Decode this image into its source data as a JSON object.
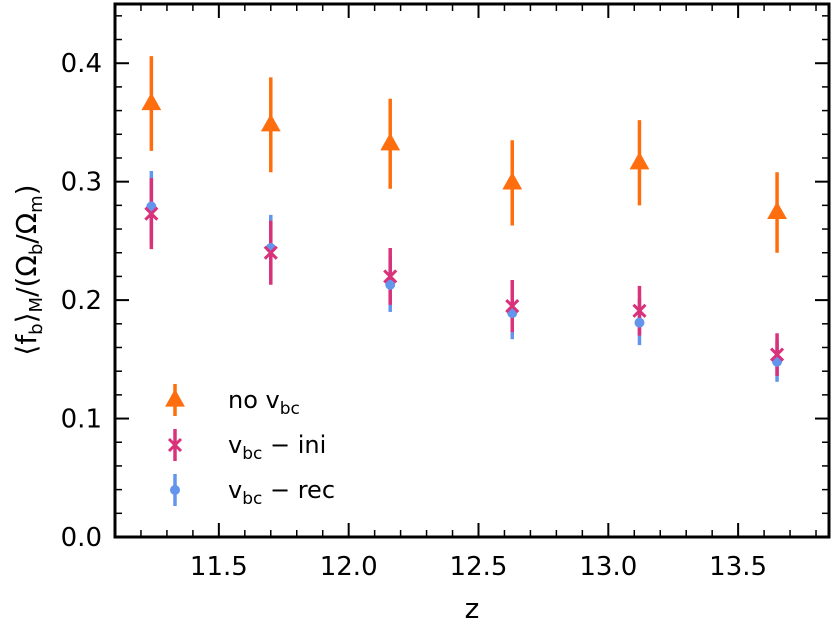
{
  "chart_data": {
    "type": "scatter",
    "xlabel": "z",
    "ylabel": "⟨fb⟩M/(Ωb/Ωm)",
    "xlim": [
      11.1,
      13.85
    ],
    "ylim": [
      0.0,
      0.45
    ],
    "xticks": [
      11.5,
      12.0,
      12.5,
      13.0,
      13.5
    ],
    "xtick_labels": [
      "11.5",
      "12.0",
      "12.5",
      "13.0",
      "13.5"
    ],
    "yticks": [
      0.0,
      0.1,
      0.2,
      0.3,
      0.4
    ],
    "ytick_labels": [
      "0.0",
      "0.1",
      "0.2",
      "0.3",
      "0.4"
    ],
    "legend_position": "bottom-left",
    "series": [
      {
        "name": "no vbc",
        "label_main": "no v",
        "label_sub": "bc",
        "label_suffix": "",
        "marker": "triangle",
        "color": "#ff6e0e",
        "points": [
          {
            "x": 11.24,
            "y": 0.366,
            "lo": 0.326,
            "hi": 0.406
          },
          {
            "x": 11.7,
            "y": 0.348,
            "lo": 0.308,
            "hi": 0.388
          },
          {
            "x": 12.16,
            "y": 0.332,
            "lo": 0.294,
            "hi": 0.37
          },
          {
            "x": 12.63,
            "y": 0.299,
            "lo": 0.263,
            "hi": 0.335
          },
          {
            "x": 13.12,
            "y": 0.316,
            "lo": 0.28,
            "hi": 0.352
          },
          {
            "x": 13.65,
            "y": 0.274,
            "lo": 0.24,
            "hi": 0.308
          }
        ]
      },
      {
        "name": "vbc - ini",
        "label_main": "v",
        "label_sub": "bc",
        "label_suffix": " − ini",
        "marker": "x",
        "color": "#d9327a",
        "points": [
          {
            "x": 11.24,
            "y": 0.273,
            "lo": 0.243,
            "hi": 0.303
          },
          {
            "x": 11.7,
            "y": 0.24,
            "lo": 0.213,
            "hi": 0.267
          },
          {
            "x": 12.16,
            "y": 0.22,
            "lo": 0.196,
            "hi": 0.244
          },
          {
            "x": 12.63,
            "y": 0.195,
            "lo": 0.173,
            "hi": 0.217
          },
          {
            "x": 13.12,
            "y": 0.191,
            "lo": 0.17,
            "hi": 0.212
          },
          {
            "x": 13.65,
            "y": 0.154,
            "lo": 0.136,
            "hi": 0.172
          }
        ]
      },
      {
        "name": "vbc - rec",
        "label_main": "v",
        "label_sub": "bc",
        "label_suffix": " − rec",
        "marker": "circle",
        "color": "#6495ed",
        "points": [
          {
            "x": 11.24,
            "y": 0.279,
            "lo": 0.249,
            "hi": 0.309
          },
          {
            "x": 11.7,
            "y": 0.244,
            "lo": 0.217,
            "hi": 0.272
          },
          {
            "x": 12.16,
            "y": 0.213,
            "lo": 0.19,
            "hi": 0.237
          },
          {
            "x": 12.63,
            "y": 0.189,
            "lo": 0.167,
            "hi": 0.211
          },
          {
            "x": 13.12,
            "y": 0.181,
            "lo": 0.162,
            "hi": 0.201
          },
          {
            "x": 13.65,
            "y": 0.148,
            "lo": 0.131,
            "hi": 0.166
          }
        ]
      }
    ]
  }
}
